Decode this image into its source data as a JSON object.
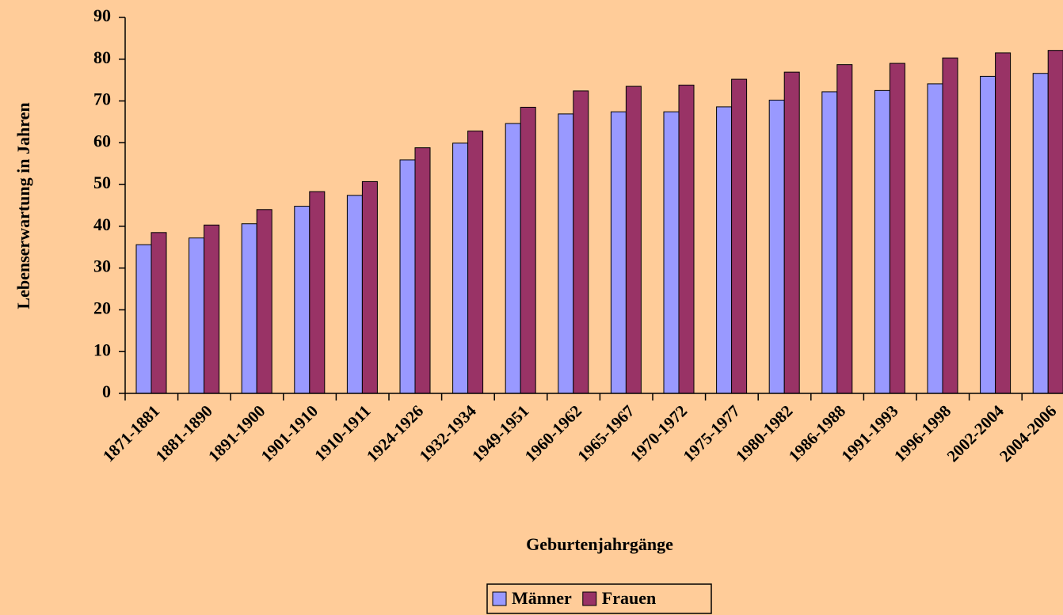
{
  "chart_data": {
    "type": "bar",
    "y_label": "Lebenserwartung in Jahren",
    "x_label": "Geburtenjahrgänge",
    "categories": [
      "1871-1881",
      "1881-1890",
      "1891-1900",
      "1901-1910",
      "1910-1911",
      "1924-1926",
      "1932-1934",
      "1949-1951",
      "1960-1962",
      "1965-1967",
      "1970-1972",
      "1975-1977",
      "1980-1982",
      "1986-1988",
      "1991-1993",
      "1996-1998",
      "2002-2004",
      "2004-2006"
    ],
    "series": [
      {
        "name": "Männer",
        "color": "#9999ff",
        "values": [
          35.6,
          37.2,
          40.6,
          44.8,
          47.4,
          55.9,
          59.9,
          64.6,
          66.9,
          67.4,
          67.4,
          68.6,
          70.2,
          72.2,
          72.5,
          74.1,
          75.9,
          76.6
        ]
      },
      {
        "name": "Frauen",
        "color": "#993366",
        "values": [
          38.5,
          40.3,
          44.0,
          48.3,
          50.7,
          58.8,
          62.8,
          68.5,
          72.4,
          73.5,
          73.8,
          75.2,
          76.9,
          78.7,
          79.0,
          80.3,
          81.5,
          82.1
        ]
      }
    ],
    "ylim": [
      0,
      90
    ],
    "yticks": [
      0,
      10,
      20,
      30,
      40,
      50,
      60,
      70,
      80,
      90
    ]
  }
}
